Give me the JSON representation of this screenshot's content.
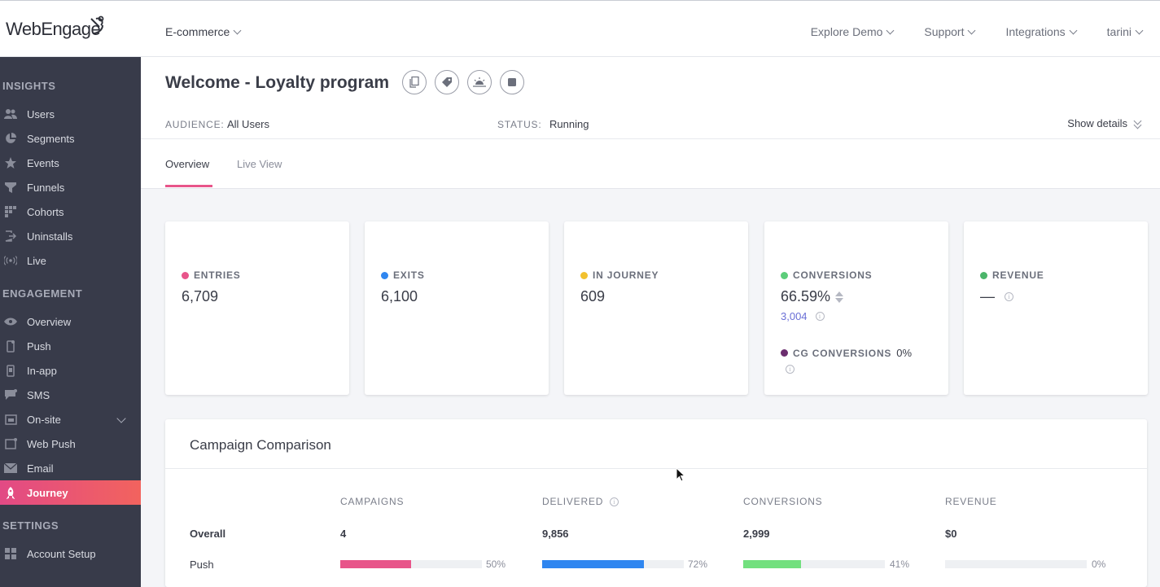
{
  "header": {
    "logo_text": "WebEngage",
    "project": "E-commerce",
    "nav": [
      "Explore Demo",
      "Support",
      "Integrations",
      "tarini"
    ]
  },
  "sidebar": {
    "sections": {
      "insights": "INSIGHTS",
      "engagement": "ENGAGEMENT",
      "settings": "SETTINGS"
    },
    "insights_items": [
      {
        "label": "Users",
        "icon": "users-icon"
      },
      {
        "label": "Segments",
        "icon": "pie-icon"
      },
      {
        "label": "Events",
        "icon": "star-icon"
      },
      {
        "label": "Funnels",
        "icon": "funnel-icon"
      },
      {
        "label": "Cohorts",
        "icon": "grid-icon"
      },
      {
        "label": "Uninstalls",
        "icon": "exit-icon"
      },
      {
        "label": "Live",
        "icon": "broadcast-icon"
      }
    ],
    "engagement_items": [
      {
        "label": "Overview",
        "icon": "eye-icon"
      },
      {
        "label": "Push",
        "icon": "mobile-icon"
      },
      {
        "label": "In-app",
        "icon": "phone-icon"
      },
      {
        "label": "SMS",
        "icon": "chat-icon"
      },
      {
        "label": "On-site",
        "icon": "window-icon"
      },
      {
        "label": "Web Push",
        "icon": "browser-icon"
      },
      {
        "label": "Email",
        "icon": "mail-icon"
      },
      {
        "label": "Journey",
        "icon": "rocket-icon"
      }
    ],
    "settings_items": [
      {
        "label": "Account Setup",
        "icon": "grid-icon"
      }
    ]
  },
  "page": {
    "title": "Welcome - Loyalty program",
    "audience_label": "AUDIENCE:",
    "audience_value": "All Users",
    "status_label": "STATUS:",
    "status_value": "Running",
    "show_details": "Show details",
    "tabs": [
      "Overview",
      "Live View"
    ]
  },
  "stats": {
    "entries": {
      "label": "ENTRIES",
      "value": "6,709",
      "color": "#e8558a"
    },
    "exits": {
      "label": "EXITS",
      "value": "6,100",
      "color": "#2f86f0"
    },
    "in_journey": {
      "label": "IN JOURNEY",
      "value": "609",
      "color": "#f2c12e"
    },
    "conversions": {
      "label": "CONVERSIONS",
      "value": "66.59%",
      "sub": "3,004",
      "color": "#5ccd7a"
    },
    "cg_conversions": {
      "label": "CG CONVERSIONS",
      "value": "0%",
      "color": "#6b2d6e"
    },
    "revenue": {
      "label": "REVENUE",
      "value": "—",
      "color": "#4bb56a"
    }
  },
  "comparison": {
    "title": "Campaign Comparison",
    "columns": [
      "CAMPAIGNS",
      "DELIVERED",
      "CONVERSIONS",
      "REVENUE"
    ],
    "overall": {
      "label": "Overall",
      "campaigns": "4",
      "delivered": "9,856",
      "conversions": "2,999",
      "revenue": "$0"
    },
    "push": {
      "label": "Push",
      "bars": [
        {
          "pct": "50%",
          "fraction": 0.5,
          "color": "#e8558a"
        },
        {
          "pct": "72%",
          "fraction": 0.72,
          "color": "#2f86f0"
        },
        {
          "pct": "41%",
          "fraction": 0.41,
          "color": "#72e07e"
        },
        {
          "pct": "0%",
          "fraction": 0,
          "color": "#eef0f3"
        }
      ]
    }
  }
}
